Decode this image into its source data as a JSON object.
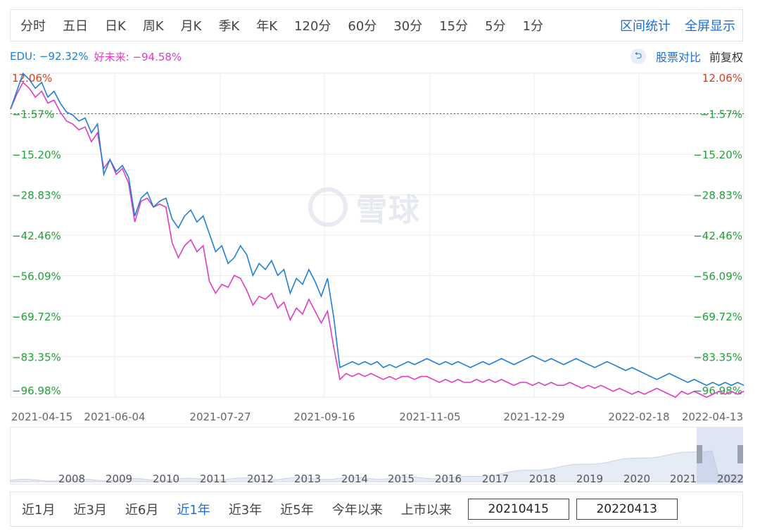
{
  "periods": [
    "分时",
    "五日",
    "日K",
    "周K",
    "月K",
    "季K",
    "年K",
    "120分",
    "60分",
    "30分",
    "15分",
    "5分",
    "1分"
  ],
  "top_actions": {
    "range_stats": "区间统计",
    "fullscreen": "全屏显示"
  },
  "legend": {
    "edu": "EDU: −92.32%",
    "hao": "好未来: −94.58%",
    "compare": "股票对比",
    "fuquan": "前复权"
  },
  "watermark": "雪球",
  "ranges": [
    "近1月",
    "近3月",
    "近6月",
    "近1年",
    "近3年",
    "近5年",
    "今年以来",
    "上市以来"
  ],
  "active_range": 3,
  "start_date": "20210415",
  "end_date": "20220413",
  "colors": {
    "edu": "#1f7fd6",
    "hao": "#e03cc2",
    "pos": "#e0391a",
    "neg": "#21a13a"
  },
  "chart_data": {
    "type": "line",
    "y_ticks": [
      12.06,
      -1.57,
      -15.2,
      -28.83,
      -42.46,
      -56.09,
      -69.72,
      -83.35,
      -96.98
    ],
    "y_tick_labels": [
      "12.06%",
      "−1.57%",
      "−15.20%",
      "−28.83%",
      "−42.46%",
      "−56.09%",
      "−69.72%",
      "−83.35%",
      "−96.98%"
    ],
    "ylim": [
      -96.98,
      12.06
    ],
    "x_tick_labels": [
      "2021-04-15",
      "2021-06-04",
      "2021-07-27",
      "2021-09-16",
      "2021-11-05",
      "2021-12-29",
      "2022-02-18",
      "2022-04-13"
    ],
    "baseline": -1.57,
    "series": [
      {
        "name": "EDU",
        "values": [
          0,
          6,
          12,
          10,
          7,
          9,
          4,
          6,
          2,
          -1,
          -2,
          -4,
          -3,
          -8,
          -5,
          -22,
          -17,
          -21,
          -19,
          -23,
          -36,
          -30,
          -28,
          -33,
          -31,
          -30,
          -37,
          -40,
          -36,
          -34,
          -38,
          -36,
          -42,
          -48,
          -46,
          -52,
          -50,
          -46,
          -49,
          -56,
          -52,
          -54,
          -51,
          -56,
          -54,
          -62,
          -57,
          -59,
          -54,
          -58,
          -63,
          -57,
          -70,
          -87,
          -86,
          -85,
          -86,
          -85,
          -86,
          -85,
          -87,
          -86,
          -87,
          -86,
          -85,
          -86,
          -85,
          -84,
          -85,
          -86,
          -85,
          -86,
          -85,
          -86,
          -87,
          -86,
          -85,
          -86,
          -85,
          -84,
          -85,
          -86,
          -85,
          -84,
          -83,
          -84,
          -85,
          -84,
          -85,
          -86,
          -85,
          -84,
          -85,
          -86,
          -87,
          -86,
          -85,
          -86,
          -87,
          -88,
          -87,
          -88,
          -89,
          -90,
          -91,
          -90,
          -89,
          -90,
          -91,
          -92,
          -91,
          -92,
          -93,
          -92,
          -93,
          -92,
          -93,
          -92,
          -93
        ],
        "dates_first": "2021-04-15",
        "dates_last": "2022-04-13"
      },
      {
        "name": "好未来",
        "values": [
          0,
          5,
          9,
          7,
          4,
          6,
          2,
          3,
          -1,
          -4,
          -5,
          -7,
          -6,
          -11,
          -8,
          -20,
          -17,
          -22,
          -20,
          -25,
          -38,
          -31,
          -30,
          -33,
          -32,
          -33,
          -45,
          -50,
          -46,
          -44,
          -48,
          -46,
          -58,
          -62,
          -59,
          -60,
          -56,
          -57,
          -61,
          -66,
          -63,
          -64,
          -62,
          -67,
          -65,
          -71,
          -67,
          -69,
          -64,
          -68,
          -72,
          -68,
          -80,
          -91,
          -89,
          -90,
          -89,
          -90,
          -89,
          -90,
          -91,
          -90,
          -91,
          -90,
          -90,
          -91,
          -90,
          -90,
          -91,
          -92,
          -91,
          -92,
          -91,
          -92,
          -92,
          -91,
          -92,
          -91,
          -92,
          -91,
          -92,
          -93,
          -92,
          -92,
          -93,
          -92,
          -93,
          -92,
          -93,
          -93,
          -92,
          -93,
          -94,
          -93,
          -94,
          -93,
          -94,
          -95,
          -94,
          -95,
          -96,
          -95,
          -96,
          -95,
          -94,
          -95,
          -96,
          -97,
          -95,
          -96,
          -95,
          -96,
          -97,
          -96,
          -95,
          -96,
          -95,
          -96,
          -95
        ]
      }
    ],
    "navigator": {
      "x_tick_labels": [
        "2008",
        "2009",
        "2010",
        "2011",
        "2012",
        "2013",
        "2014",
        "2015",
        "2016",
        "2017",
        "2018",
        "2019",
        "2020",
        "2021",
        "2022"
      ]
    }
  }
}
